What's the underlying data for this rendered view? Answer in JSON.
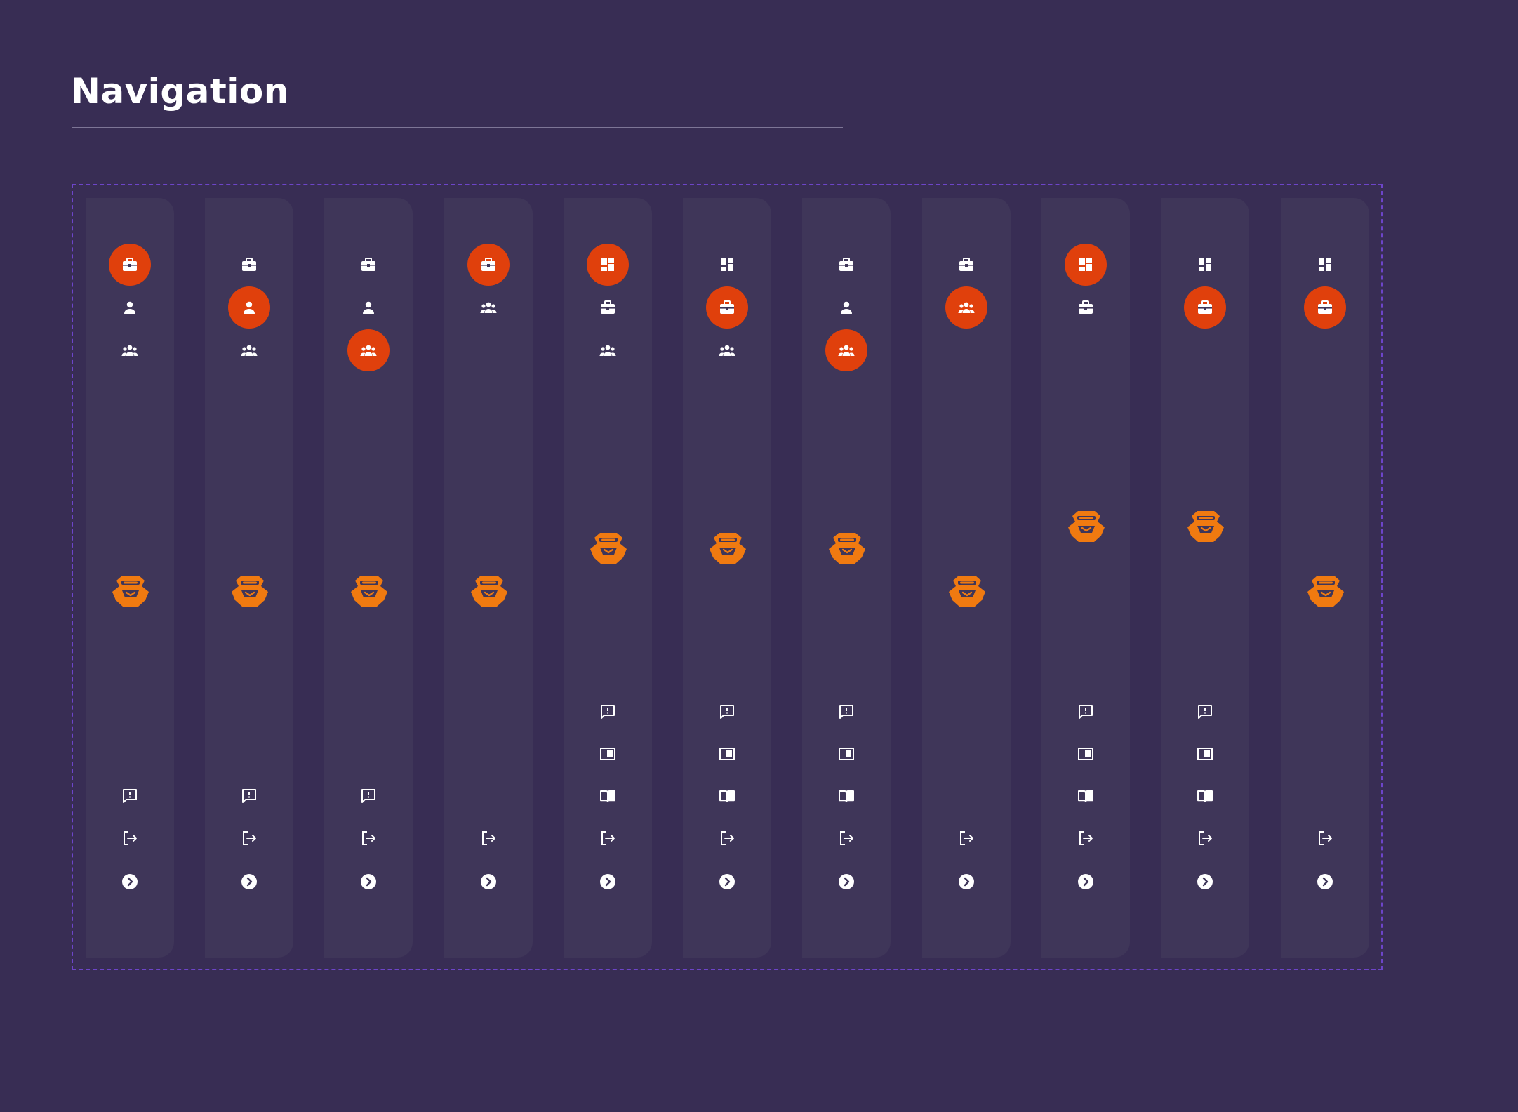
{
  "page": {
    "title": "Navigation"
  },
  "colors": {
    "background": "#382d54",
    "rail": "#3f3659",
    "active": "#e0400c",
    "logo": "#f07a10",
    "icon": "#ffffff",
    "frame_border": "#6d45c9"
  },
  "icons": {
    "dashboard": "dashboard-icon",
    "briefcase": "briefcase-icon",
    "person": "person-icon",
    "group": "group-icon",
    "feedback": "feedback-icon",
    "panel": "panel-icon",
    "book": "book-icon",
    "logout": "logout-icon",
    "expand": "chevron-right-circle-icon",
    "logo": "brand-logo"
  },
  "rails": [
    {
      "top": [
        "briefcase",
        "person",
        "group"
      ],
      "active": "briefcase",
      "logo_variant": "lower",
      "bottom": [
        "feedback",
        "logout",
        "expand"
      ]
    },
    {
      "top": [
        "briefcase",
        "person",
        "group"
      ],
      "active": "person",
      "logo_variant": "lower",
      "bottom": [
        "feedback",
        "logout",
        "expand"
      ]
    },
    {
      "top": [
        "briefcase",
        "person",
        "group"
      ],
      "active": "group",
      "logo_variant": "lower",
      "bottom": [
        "feedback",
        "logout",
        "expand"
      ]
    },
    {
      "top": [
        "briefcase",
        "group"
      ],
      "active": "briefcase",
      "logo_variant": "lower",
      "bottom": [
        "logout",
        "expand"
      ]
    },
    {
      "top": [
        "dashboard",
        "briefcase",
        "group"
      ],
      "active": "dashboard",
      "logo_variant": "middle",
      "bottom": [
        "feedback",
        "panel",
        "book",
        "logout",
        "expand"
      ]
    },
    {
      "top": [
        "dashboard",
        "briefcase",
        "group"
      ],
      "active": "briefcase",
      "logo_variant": "middle",
      "bottom": [
        "feedback",
        "panel",
        "book",
        "logout",
        "expand"
      ]
    },
    {
      "top": [
        "briefcase",
        "person",
        "group"
      ],
      "active": "group",
      "logo_variant": "middle",
      "bottom": [
        "feedback",
        "panel",
        "book",
        "logout",
        "expand"
      ]
    },
    {
      "top": [
        "briefcase",
        "group"
      ],
      "active": "group",
      "logo_variant": "lower",
      "bottom": [
        "logout",
        "expand"
      ]
    },
    {
      "top": [
        "dashboard",
        "briefcase"
      ],
      "active": "dashboard",
      "logo_variant": "upper",
      "bottom": [
        "feedback",
        "panel",
        "book",
        "logout",
        "expand"
      ]
    },
    {
      "top": [
        "dashboard",
        "briefcase"
      ],
      "active": "briefcase",
      "logo_variant": "upper",
      "bottom": [
        "feedback",
        "panel",
        "book",
        "logout",
        "expand"
      ]
    },
    {
      "top": [
        "dashboard",
        "briefcase"
      ],
      "active": "briefcase",
      "logo_variant": "lower",
      "bottom": [
        "logout",
        "expand"
      ]
    }
  ]
}
